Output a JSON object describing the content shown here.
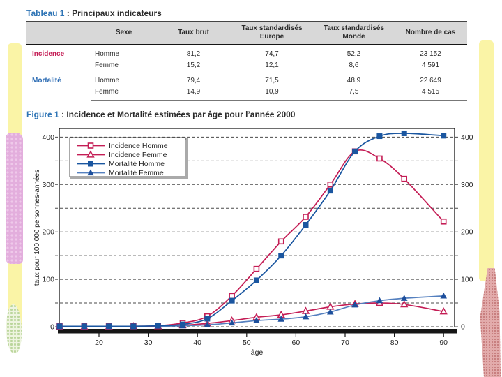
{
  "table_section": {
    "title_prefix": "Tableau 1",
    "title_rest": " : Principaux indicateurs",
    "columns": [
      "",
      "Sexe",
      "Taux brut",
      "Taux standardisés Europe",
      "Taux standardisés Monde",
      "Nombre de cas"
    ],
    "rows": [
      {
        "group": "Incidence",
        "group_color": "#c41d55",
        "cells": [
          "Homme",
          "81,2",
          "74,7",
          "52,2",
          "23 152"
        ]
      },
      {
        "group": "",
        "cells": [
          "Femme",
          "15,2",
          "12,1",
          "8,6",
          "4 591"
        ]
      },
      {
        "group": "Mortalité",
        "group_color": "#2e6db4",
        "cells": [
          "Homme",
          "79,4",
          "71,5",
          "48,9",
          "22 649"
        ]
      },
      {
        "group": "",
        "cells": [
          "Femme",
          "14,9",
          "10,9",
          "7,5",
          "4 515"
        ]
      }
    ]
  },
  "figure_section": {
    "title_prefix": "Figure 1",
    "title_rest": " : Incidence et Mortalité estimées par âge pour l’année 2000"
  },
  "chart_data": {
    "type": "line",
    "title": "Incidence et Mortalité estimées par âge pour l’année 2000",
    "xlabel": "âge",
    "ylabel": "taux pour 100 000 personnes-années",
    "x": [
      12,
      17,
      22,
      27,
      32,
      37,
      42,
      47,
      52,
      57,
      62,
      67,
      72,
      77,
      82,
      90
    ],
    "series": [
      {
        "name": "Incidence Homme",
        "color": "#c41d55",
        "marker": "open-square",
        "values": [
          1,
          1,
          1,
          1,
          2,
          8,
          22,
          65,
          122,
          180,
          232,
          300,
          370,
          355,
          312,
          222
        ]
      },
      {
        "name": "Incidence Femme",
        "color": "#c41d55",
        "marker": "open-triangle",
        "values": [
          0,
          0,
          0,
          1,
          1,
          3,
          7,
          13,
          20,
          25,
          33,
          42,
          48,
          50,
          47,
          32
        ]
      },
      {
        "name": "Mortalité Homme",
        "color": "#1a56a0",
        "marker": "filled-square",
        "values": [
          1,
          1,
          1,
          1,
          2,
          5,
          17,
          55,
          98,
          150,
          215,
          287,
          370,
          402,
          408,
          403
        ]
      },
      {
        "name": "Mortalité Femme",
        "color": "#5580bf",
        "marker_color": "#1d4f9c",
        "marker": "filled-triangle",
        "values": [
          0,
          0,
          0,
          0,
          1,
          2,
          4,
          8,
          13,
          16,
          21,
          31,
          46,
          55,
          60,
          65
        ]
      }
    ],
    "xlim": [
      11.8,
      92.3
    ],
    "ylim": [
      0,
      400
    ],
    "xticks": [
      20,
      30,
      40,
      50,
      60,
      70,
      80,
      90
    ],
    "yticks": [
      0,
      100,
      200,
      300,
      400
    ],
    "ygrid_interval": 50,
    "grid": "horizontal-dashed",
    "legend_position": "top-left",
    "colors": {
      "incidence": "#c41d55",
      "mortalite": "#1a56a0",
      "grid": "#4a4a4a",
      "axis": "#161616"
    }
  }
}
